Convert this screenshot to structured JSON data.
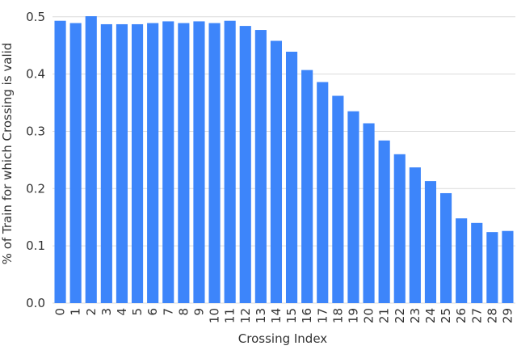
{
  "chart_data": {
    "type": "bar",
    "x_label": "Crossing Index",
    "y_label": "% of Train for which Crossing is valid",
    "categories": [
      "0",
      "1",
      "2",
      "3",
      "4",
      "5",
      "6",
      "7",
      "8",
      "9",
      "10",
      "11",
      "12",
      "13",
      "14",
      "15",
      "16",
      "17",
      "18",
      "19",
      "20",
      "21",
      "22",
      "23",
      "24",
      "25",
      "26",
      "27",
      "28",
      "29"
    ],
    "values": [
      0.493,
      0.489,
      0.501,
      0.487,
      0.487,
      0.487,
      0.489,
      0.492,
      0.489,
      0.492,
      0.489,
      0.493,
      0.484,
      0.477,
      0.458,
      0.439,
      0.407,
      0.386,
      0.362,
      0.335,
      0.314,
      0.284,
      0.26,
      0.237,
      0.213,
      0.192,
      0.148,
      0.14,
      0.124,
      0.126
    ],
    "color": "#3d85fa",
    "ylim": [
      0,
      0.518
    ],
    "yticks": [
      {
        "value": 0,
        "label": "0.0"
      },
      0.1,
      0.2,
      0.3,
      0.4,
      0.5
    ],
    "grid": true
  }
}
